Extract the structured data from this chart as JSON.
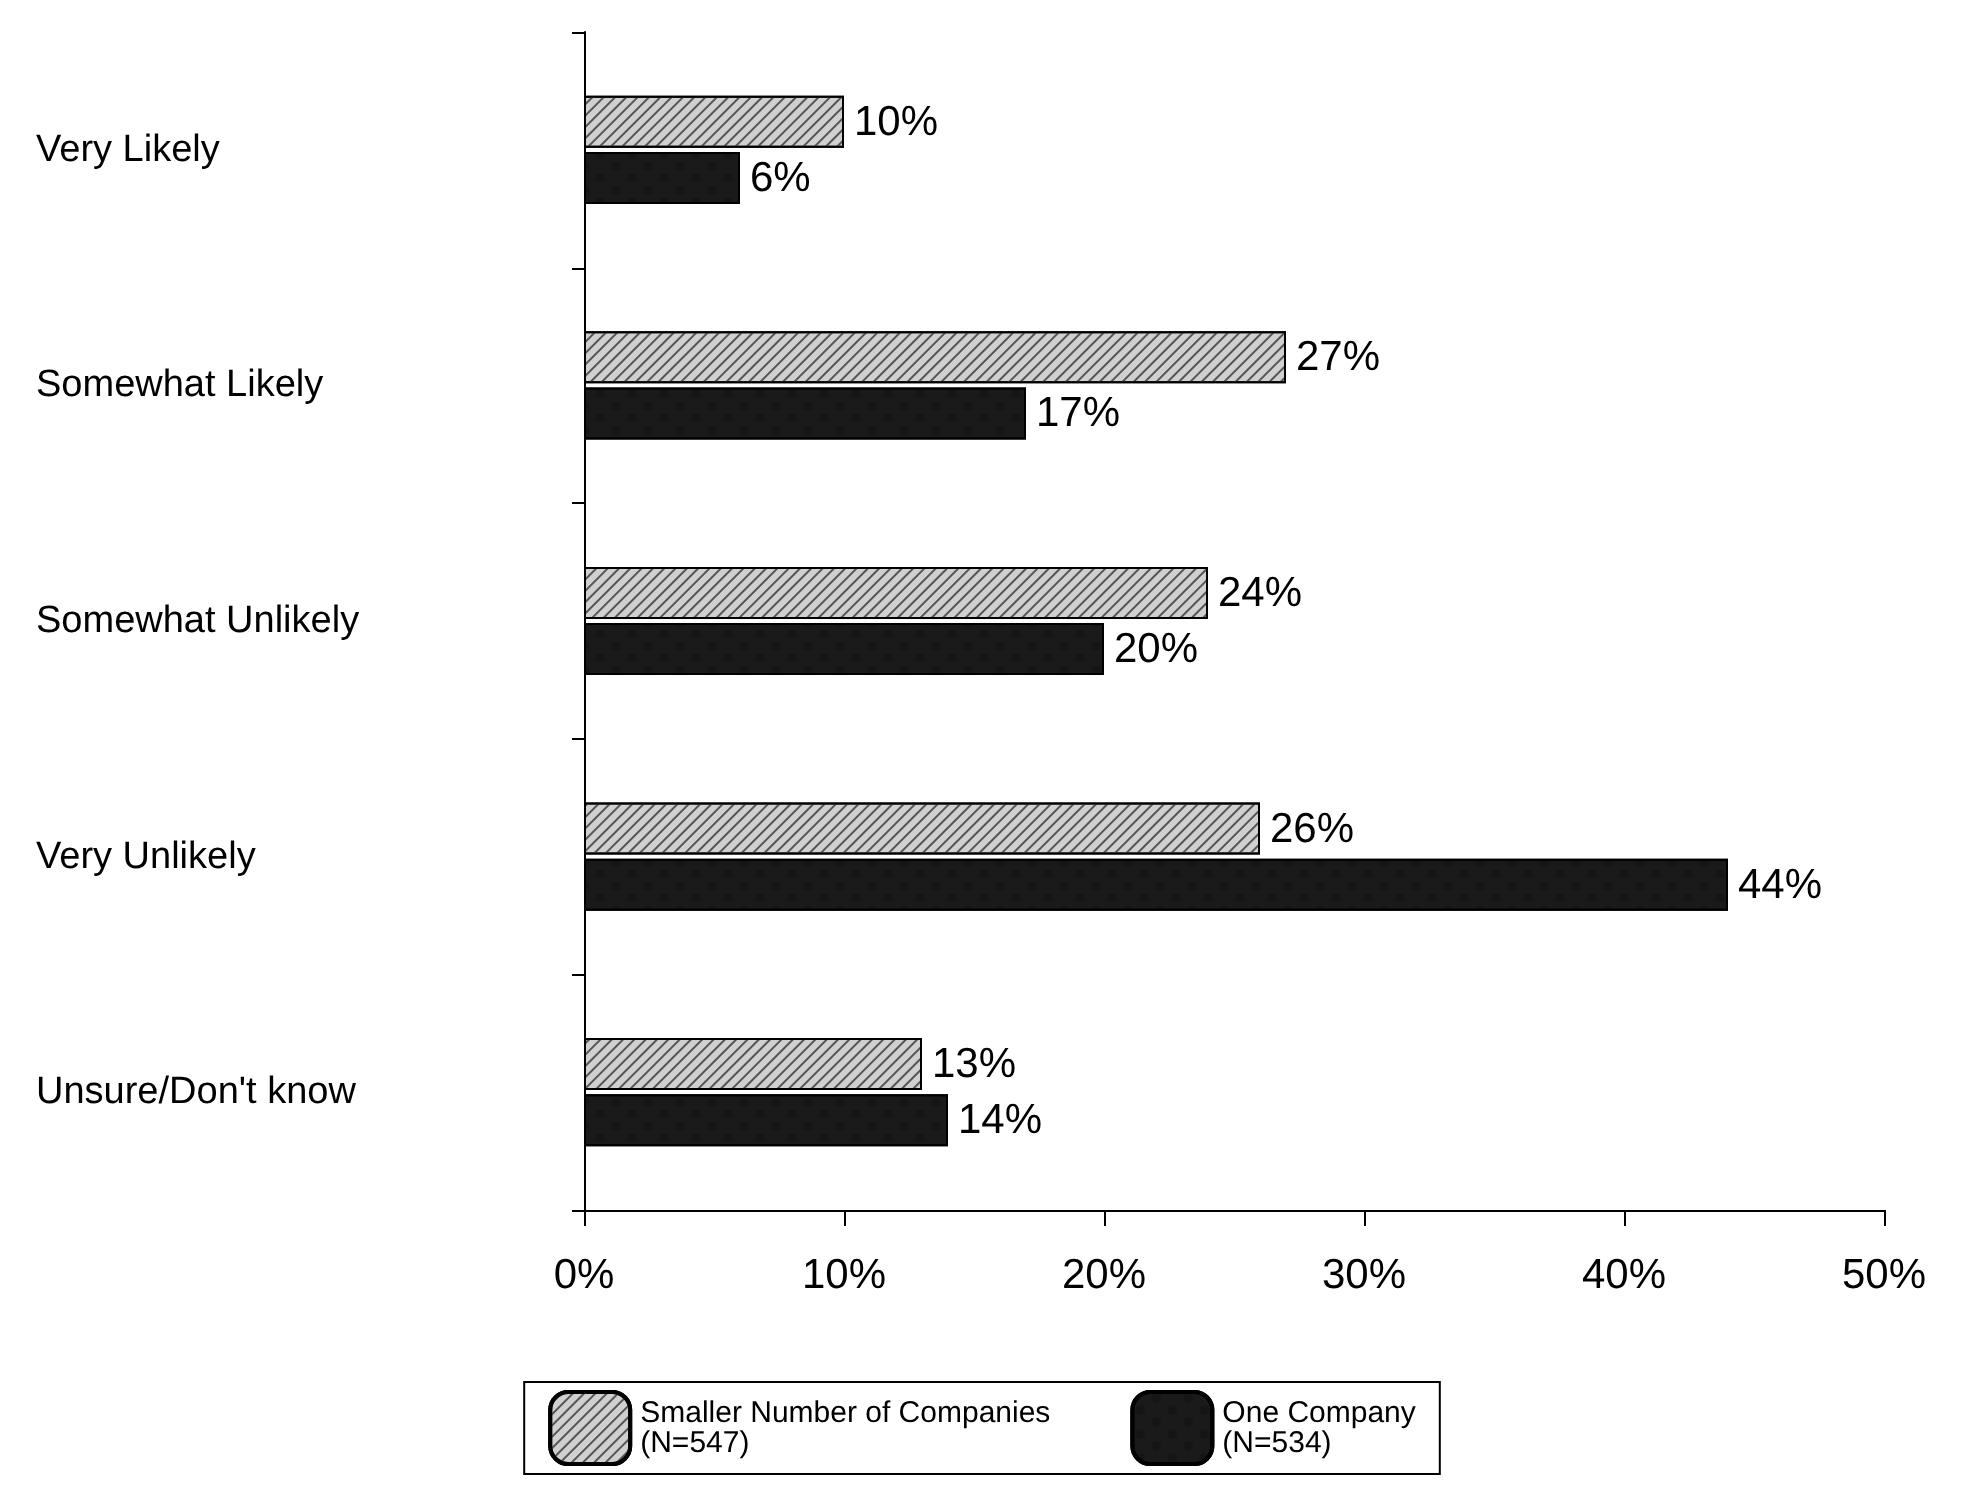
{
  "chart_data": {
    "type": "bar",
    "orientation": "horizontal",
    "categories": [
      "Very Likely",
      "Somewhat Likely",
      "Somewhat Unlikely",
      "Very Unlikely",
      "Unsure/Don't know"
    ],
    "series": [
      {
        "name": "Smaller Number of Companies\n(N=547)",
        "color": "#d0d0d0",
        "values": [
          10,
          27,
          24,
          26,
          13
        ],
        "value_labels": [
          "10%",
          "27%",
          "24%",
          "26%",
          "13%"
        ]
      },
      {
        "name": "One Company\n(N=534)",
        "color": "#1a1a1a",
        "values": [
          6,
          17,
          20,
          44,
          14
        ],
        "value_labels": [
          "6%",
          "17%",
          "20%",
          "44%",
          "14%"
        ]
      }
    ],
    "xlim": [
      0,
      50
    ],
    "xticks": [
      {
        "value": 0,
        "label": "0%"
      },
      {
        "value": 10,
        "label": "10%"
      },
      {
        "value": 20,
        "label": "20%"
      },
      {
        "value": 30,
        "label": "30%"
      },
      {
        "value": 40,
        "label": "40%"
      },
      {
        "value": 50,
        "label": "50%"
      }
    ],
    "grid": false,
    "legend": "bottom"
  }
}
